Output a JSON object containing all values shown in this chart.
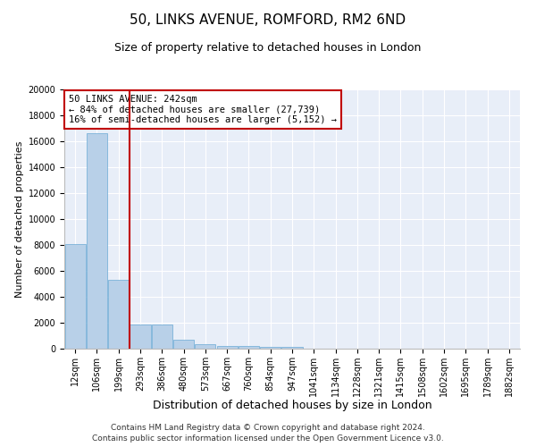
{
  "title1": "50, LINKS AVENUE, ROMFORD, RM2 6ND",
  "title2": "Size of property relative to detached houses in London",
  "xlabel": "Distribution of detached houses by size in London",
  "ylabel": "Number of detached properties",
  "bins": [
    "12sqm",
    "106sqm",
    "199sqm",
    "293sqm",
    "386sqm",
    "480sqm",
    "573sqm",
    "667sqm",
    "760sqm",
    "854sqm",
    "947sqm",
    "1041sqm",
    "1134sqm",
    "1228sqm",
    "1321sqm",
    "1415sqm",
    "1508sqm",
    "1602sqm",
    "1695sqm",
    "1789sqm",
    "1882sqm"
  ],
  "values": [
    8100,
    16600,
    5300,
    1850,
    1850,
    680,
    320,
    220,
    200,
    160,
    150,
    0,
    0,
    0,
    0,
    0,
    0,
    0,
    0,
    0,
    0
  ],
  "bar_color": "#b8d0e8",
  "bar_edge_color": "#6aaad4",
  "vline_color": "#c00000",
  "annotation_text": "50 LINKS AVENUE: 242sqm\n← 84% of detached houses are smaller (27,739)\n16% of semi-detached houses are larger (5,152) →",
  "annotation_box_color": "#ffffff",
  "annotation_box_edge": "#c00000",
  "ylim": [
    0,
    20000
  ],
  "yticks": [
    0,
    2000,
    4000,
    6000,
    8000,
    10000,
    12000,
    14000,
    16000,
    18000,
    20000
  ],
  "bg_color": "#e8eef8",
  "footer": "Contains HM Land Registry data © Crown copyright and database right 2024.\nContains public sector information licensed under the Open Government Licence v3.0.",
  "title1_fontsize": 11,
  "title2_fontsize": 9,
  "xlabel_fontsize": 9,
  "ylabel_fontsize": 8,
  "tick_fontsize": 7,
  "footer_fontsize": 6.5,
  "annot_fontsize": 7.5
}
